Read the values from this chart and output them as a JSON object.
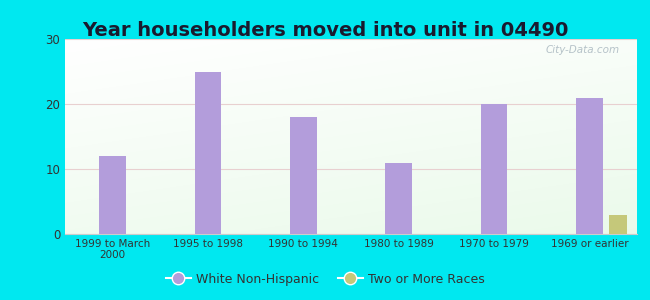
{
  "title": "Year householders moved into unit in 04490",
  "categories": [
    "1999 to March\n2000",
    "1995 to 1998",
    "1990 to 1994",
    "1980 to 1989",
    "1970 to 1979",
    "1969 or earlier"
  ],
  "white_nonhispanic": [
    12,
    25,
    18,
    11,
    20,
    21
  ],
  "two_or_more": [
    0,
    0,
    0,
    0,
    0,
    3
  ],
  "bar_color_white": "#b39ddb",
  "bar_color_two": "#c5c87a",
  "ylim": [
    0,
    30
  ],
  "yticks": [
    0,
    10,
    20,
    30
  ],
  "bg_outer": "#00e8f0",
  "bg_plot_top_left": "#f0faf0",
  "bg_plot_bottom_right": "#e8f5e9",
  "legend_labels": [
    "White Non-Hispanic",
    "Two or More Races"
  ],
  "bar_width": 0.28,
  "title_fontsize": 14,
  "watermark": "City-Data.com"
}
